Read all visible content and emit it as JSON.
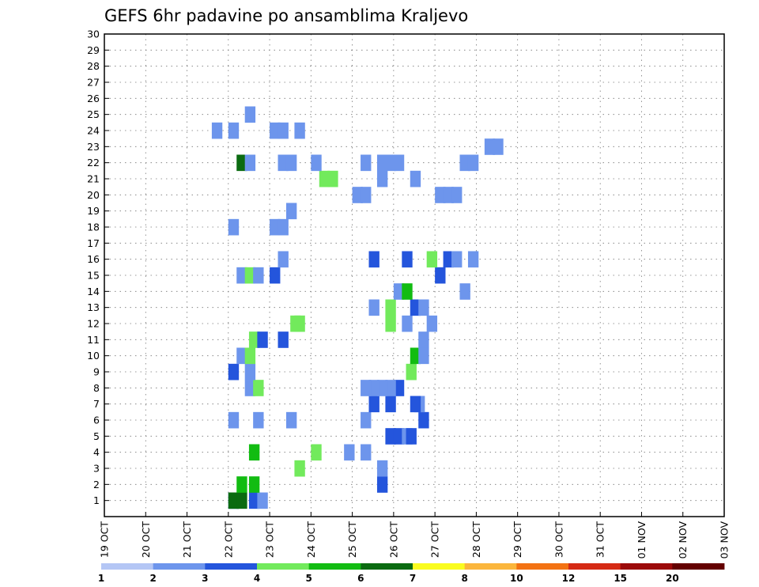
{
  "chart_data": {
    "type": "heatmap",
    "title": "GEFS 6hr padavine po ansamblima Kraljevo",
    "xlabel": "",
    "ylabel": "",
    "x_ticks": [
      "19 OCT",
      "20 OCT",
      "21 OCT",
      "22 OCT",
      "23 OCT",
      "24 OCT",
      "25 OCT",
      "26 OCT",
      "27 OCT",
      "28 OCT",
      "29 OCT",
      "30 OCT",
      "31 OCT",
      "01 NOV",
      "02 NOV",
      "03 NOV"
    ],
    "y_ticks": [
      "1",
      "2",
      "3",
      "4",
      "5",
      "6",
      "7",
      "8",
      "9",
      "10",
      "11",
      "12",
      "13",
      "14",
      "15",
      "16",
      "17",
      "18",
      "19",
      "20",
      "21",
      "22",
      "23",
      "24",
      "25",
      "26",
      "27",
      "28",
      "29",
      "30"
    ],
    "xlim_days": [
      0,
      15
    ],
    "ylim": [
      0,
      30
    ],
    "grid": true,
    "legend": {
      "placement": "bottom",
      "colors": [
        "#b4c6f5",
        "#6d95ec",
        "#2455dc",
        "#72ea5c",
        "#12bc12",
        "#0b6b11",
        "#fafc1f",
        "#fbb63c",
        "#f37212",
        "#d52a14",
        "#9c0a0a",
        "#640000"
      ],
      "labels": [
        "1",
        "2",
        "3",
        "4",
        "5",
        "6",
        "7",
        "8",
        "10",
        "12",
        "15",
        "20"
      ]
    },
    "cells": [
      [
        3.0,
        1,
        1
      ],
      [
        3.0,
        1,
        1
      ],
      [
        3.0,
        1,
        5
      ],
      [
        3.2,
        1,
        5
      ],
      [
        3.5,
        1,
        2
      ],
      [
        3.7,
        1,
        1
      ],
      [
        3.2,
        2,
        4
      ],
      [
        3.5,
        2,
        4
      ],
      [
        6.6,
        2,
        2
      ],
      [
        6.6,
        3,
        1
      ],
      [
        4.6,
        3,
        3
      ],
      [
        5.0,
        4,
        3
      ],
      [
        3.5,
        4,
        4
      ],
      [
        5.8,
        4,
        1
      ],
      [
        6.2,
        4,
        1
      ],
      [
        6.8,
        5,
        2
      ],
      [
        7.0,
        5,
        2
      ],
      [
        7.2,
        5,
        1
      ],
      [
        7.3,
        5,
        2
      ],
      [
        7.6,
        6,
        2
      ],
      [
        6.2,
        6,
        1
      ],
      [
        4.4,
        6,
        1
      ],
      [
        3.6,
        6,
        1
      ],
      [
        3.0,
        6,
        1
      ],
      [
        7.5,
        7,
        1
      ],
      [
        6.4,
        7,
        2
      ],
      [
        6.8,
        7,
        2
      ],
      [
        7.4,
        7,
        2
      ],
      [
        7.0,
        8,
        2
      ],
      [
        6.8,
        8,
        1
      ],
      [
        6.6,
        8,
        1
      ],
      [
        6.4,
        8,
        1
      ],
      [
        6.2,
        8,
        1
      ],
      [
        3.4,
        8,
        1
      ],
      [
        3.6,
        8,
        3
      ],
      [
        3.0,
        9,
        2
      ],
      [
        3.4,
        9,
        1
      ],
      [
        7.3,
        9,
        3
      ],
      [
        3.2,
        10,
        1
      ],
      [
        3.4,
        10,
        3
      ],
      [
        7.4,
        10,
        4
      ],
      [
        7.6,
        10,
        1
      ],
      [
        3.5,
        11,
        3
      ],
      [
        3.7,
        11,
        2
      ],
      [
        4.2,
        11,
        2
      ],
      [
        7.6,
        11,
        1
      ],
      [
        4.5,
        12,
        3
      ],
      [
        4.6,
        12,
        3
      ],
      [
        6.8,
        12,
        3
      ],
      [
        7.2,
        12,
        1
      ],
      [
        7.8,
        12,
        1
      ],
      [
        6.4,
        13,
        1
      ],
      [
        6.8,
        13,
        3
      ],
      [
        7.4,
        13,
        2
      ],
      [
        7.6,
        13,
        1
      ],
      [
        8.6,
        14,
        1
      ],
      [
        7.0,
        14,
        1
      ],
      [
        7.2,
        14,
        4
      ],
      [
        8.0,
        15,
        2
      ],
      [
        3.2,
        15,
        1
      ],
      [
        3.4,
        15,
        3
      ],
      [
        3.6,
        15,
        1
      ],
      [
        4.0,
        15,
        2
      ],
      [
        4.2,
        16,
        1
      ],
      [
        6.4,
        16,
        2
      ],
      [
        7.2,
        16,
        2
      ],
      [
        7.8,
        16,
        3
      ],
      [
        8.2,
        16,
        2
      ],
      [
        8.4,
        16,
        1
      ],
      [
        8.8,
        16,
        1
      ],
      [
        3.0,
        18,
        1
      ],
      [
        4.0,
        18,
        1
      ],
      [
        4.2,
        18,
        1
      ],
      [
        4.4,
        19,
        1
      ],
      [
        6.0,
        20,
        1
      ],
      [
        6.2,
        20,
        1
      ],
      [
        8.0,
        20,
        1
      ],
      [
        8.2,
        20,
        1
      ],
      [
        8.4,
        20,
        1
      ],
      [
        5.2,
        21,
        3
      ],
      [
        5.4,
        21,
        3
      ],
      [
        6.6,
        21,
        1
      ],
      [
        7.4,
        21,
        1
      ],
      [
        3.2,
        22,
        5
      ],
      [
        3.4,
        22,
        1
      ],
      [
        4.2,
        22,
        1
      ],
      [
        4.4,
        22,
        1
      ],
      [
        5.0,
        22,
        1
      ],
      [
        6.2,
        22,
        1
      ],
      [
        6.6,
        22,
        1
      ],
      [
        6.8,
        22,
        1
      ],
      [
        7.0,
        22,
        1
      ],
      [
        8.6,
        22,
        1
      ],
      [
        8.8,
        22,
        1
      ],
      [
        9.2,
        23,
        1
      ],
      [
        9.4,
        23,
        1
      ],
      [
        2.6,
        24,
        1
      ],
      [
        3.0,
        24,
        1
      ],
      [
        4.0,
        24,
        1
      ],
      [
        4.2,
        24,
        1
      ],
      [
        4.6,
        24,
        1
      ],
      [
        3.4,
        25,
        1
      ]
    ],
    "cells_note": ""
  }
}
